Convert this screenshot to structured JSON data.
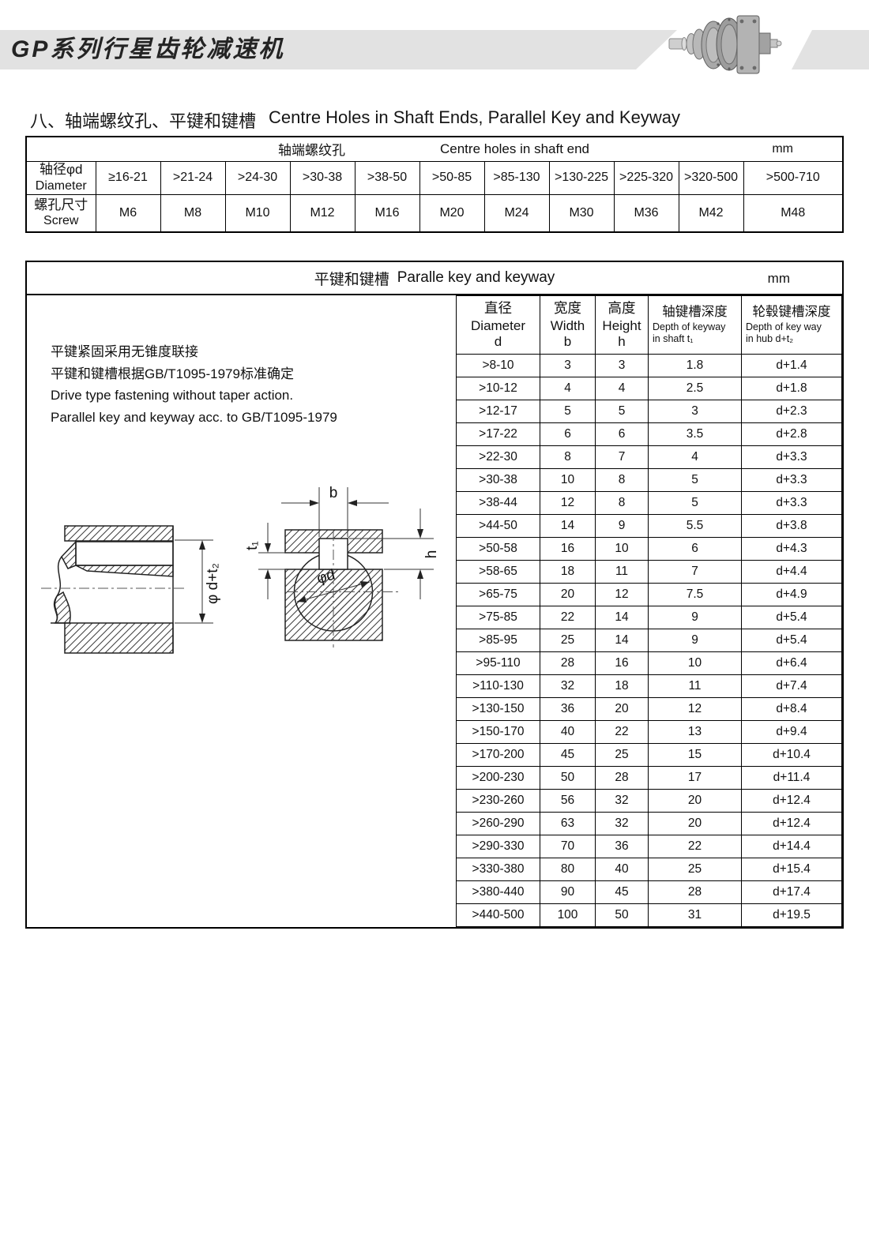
{
  "header": {
    "title": "GP系列行星齿轮减速机",
    "band_color": "#e2e2e2",
    "image": "planetary-gear-reducer-photo"
  },
  "section": {
    "title_zh": "八、轴端螺纹孔、平键和键槽",
    "title_en": "Centre Holes in Shaft Ends, Parallel Key and Keyway"
  },
  "centre_holes_table": {
    "title_zh": "轴端螺纹孔",
    "title_en": "Centre holes in shaft end",
    "unit": "mm",
    "diameter_label_zh": "轴径φd",
    "diameter_label_en": "Diameter",
    "screw_label_zh": "螺孔尺寸",
    "screw_label_en": "Screw",
    "diameters": [
      "≥16-21",
      ">21-24",
      ">24-30",
      ">30-38",
      ">38-50",
      ">50-85",
      ">85-130",
      ">130-225",
      ">225-320",
      ">320-500",
      ">500-710"
    ],
    "screws": [
      "M6",
      "M8",
      "M10",
      "M12",
      "M16",
      "M20",
      "M24",
      "M30",
      "M36",
      "M42",
      "M48"
    ]
  },
  "key_table": {
    "title_zh": "平键和键槽",
    "title_en": "Paralle key and keyway",
    "unit": "mm",
    "notes": [
      "平键紧固采用无锥度联接",
      "平键和键槽根据GB/T1095-1979标准确定",
      "Drive type fastening without taper action.",
      "Parallel key and keyway acc. to GB/T1095-1979"
    ],
    "columns": [
      {
        "zh": "直径",
        "en": "Diameter",
        "sym": "d"
      },
      {
        "zh": "宽度",
        "en": "Width",
        "sym": "b"
      },
      {
        "zh": "高度",
        "en": "Height",
        "sym": "h"
      },
      {
        "zh": "轴键槽深度",
        "en": "Depth of keyway",
        "en2": "in shaft  t₁"
      },
      {
        "zh": "轮毂键槽深度",
        "en": "Depth of key way",
        "en2": "in hub  d+t₂"
      }
    ],
    "rows": [
      [
        ">8-10",
        "3",
        "3",
        "1.8",
        "d+1.4"
      ],
      [
        ">10-12",
        "4",
        "4",
        "2.5",
        "d+1.8"
      ],
      [
        ">12-17",
        "5",
        "5",
        "3",
        "d+2.3"
      ],
      [
        ">17-22",
        "6",
        "6",
        "3.5",
        "d+2.8"
      ],
      [
        ">22-30",
        "8",
        "7",
        "4",
        "d+3.3"
      ],
      [
        ">30-38",
        "10",
        "8",
        "5",
        "d+3.3"
      ],
      [
        ">38-44",
        "12",
        "8",
        "5",
        "d+3.3"
      ],
      [
        ">44-50",
        "14",
        "9",
        "5.5",
        "d+3.8"
      ],
      [
        ">50-58",
        "16",
        "10",
        "6",
        "d+4.3"
      ],
      [
        ">58-65",
        "18",
        "11",
        "7",
        "d+4.4"
      ],
      [
        ">65-75",
        "20",
        "12",
        "7.5",
        "d+4.9"
      ],
      [
        ">75-85",
        "22",
        "14",
        "9",
        "d+5.4"
      ],
      [
        ">85-95",
        "25",
        "14",
        "9",
        "d+5.4"
      ],
      [
        ">95-110",
        "28",
        "16",
        "10",
        "d+6.4"
      ],
      [
        ">110-130",
        "32",
        "18",
        "11",
        "d+7.4"
      ],
      [
        ">130-150",
        "36",
        "20",
        "12",
        "d+8.4"
      ],
      [
        ">150-170",
        "40",
        "22",
        "13",
        "d+9.4"
      ],
      [
        ">170-200",
        "45",
        "25",
        "15",
        "d+10.4"
      ],
      [
        ">200-230",
        "50",
        "28",
        "17",
        "d+11.4"
      ],
      [
        ">230-260",
        "56",
        "32",
        "20",
        "d+12.4"
      ],
      [
        ">260-290",
        "63",
        "32",
        "20",
        "d+12.4"
      ],
      [
        ">290-330",
        "70",
        "36",
        "22",
        "d+14.4"
      ],
      [
        ">330-380",
        "80",
        "40",
        "25",
        "d+15.4"
      ],
      [
        ">380-440",
        "90",
        "45",
        "28",
        "d+17.4"
      ],
      [
        ">440-500",
        "100",
        "50",
        "31",
        "d+19.5"
      ]
    ]
  },
  "diagram": {
    "labels": {
      "width": "b",
      "shaft_depth": "t₁",
      "height": "h",
      "diameter": "φd",
      "hub_diameter": "φ d+t₂"
    }
  }
}
